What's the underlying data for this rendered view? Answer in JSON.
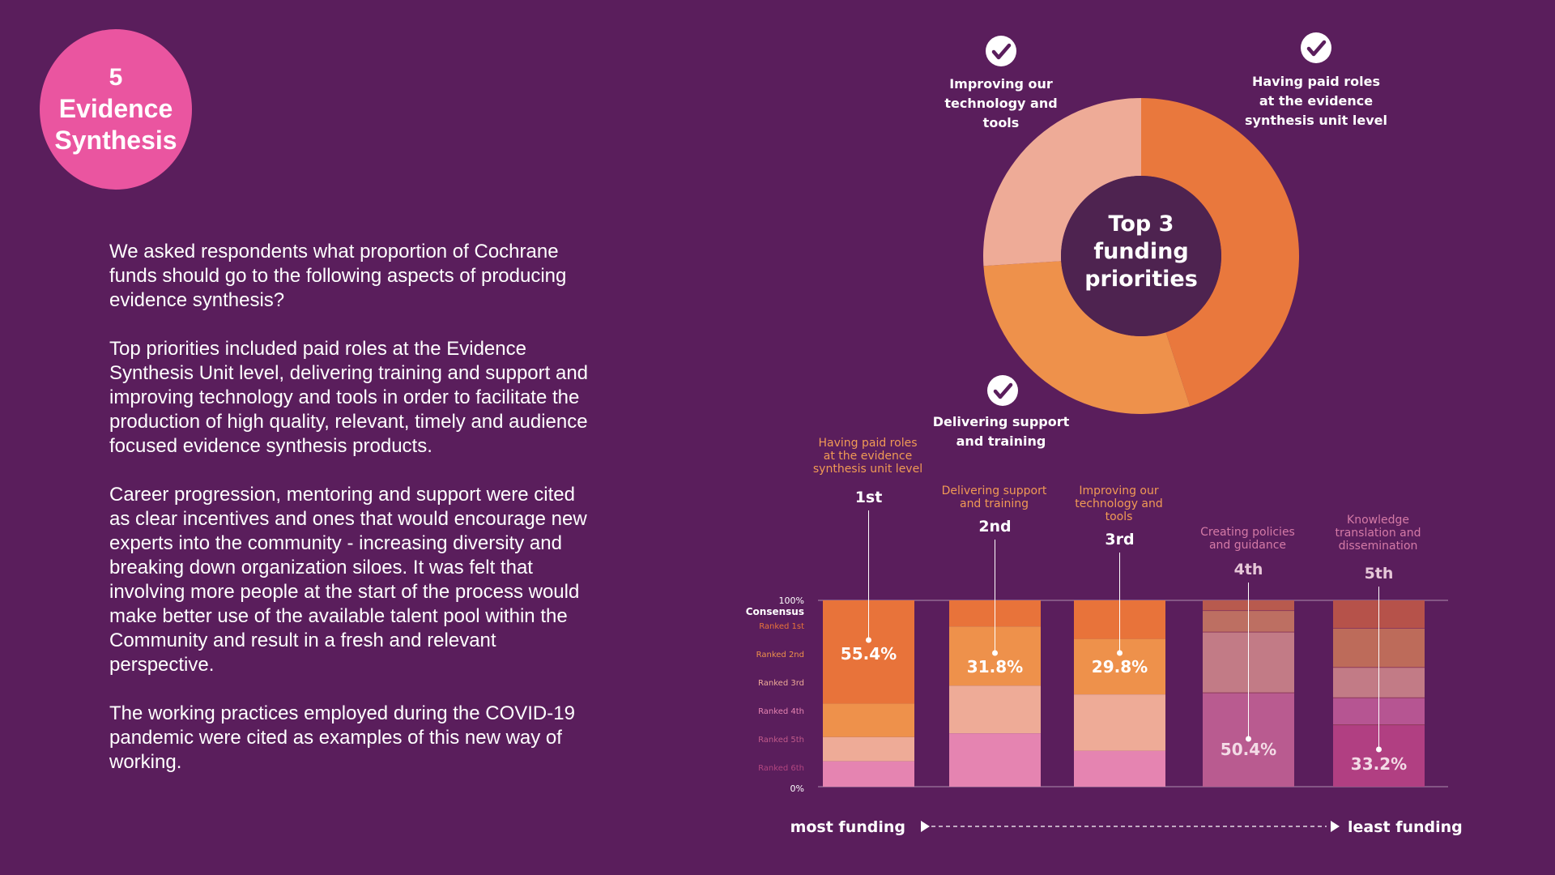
{
  "badge": {
    "number": "5",
    "line1": "Evidence",
    "line2": "Synthesis"
  },
  "paragraphs": [
    "We asked respondents what proportion of Cochrane funds should go to the following aspects of producing evidence synthesis?",
    "Top priorities included paid roles at the Evidence Synthesis Unit level, delivering training and support and improving technology and tools in order to facilitate the production of high quality, relevant, timely and audience focused evidence synthesis products.",
    "Career progression, mentoring and support were cited as clear incentives and ones that would encourage new experts into the community - increasing diversity and breaking down organization siloes. It was felt that involving more people at the start of the process would make better use of the available talent pool within the Community and result in a fresh and relevant perspective.",
    "The working practices employed during the COVID-19 pandemic were cited as examples of this new way of working."
  ],
  "colors": {
    "background": "#5a1e5c",
    "badge": "#ea55a0",
    "donut_center": "#4e2350",
    "rank1": "#e9783d",
    "rank2": "#ee914b",
    "rank3": "#eeab97",
    "rank4": "#e584b1",
    "muted": "#d47aa6"
  },
  "chart_data": [
    {
      "type": "pie",
      "title": "Top 3 funding priorities",
      "center_lines": [
        "Top 3",
        "funding",
        "priorities"
      ],
      "slices": [
        {
          "label": "Having paid roles at the evidence synthesis unit level",
          "lines": [
            "Having paid roles",
            "at the evidence",
            "synthesis unit level"
          ],
          "value": 0.45,
          "color": "#e9783d",
          "icon": "check-icon"
        },
        {
          "label": "Delivering support and training",
          "lines": [
            "Delivering support",
            "and training"
          ],
          "value": 0.29,
          "color": "#ee914b",
          "icon": "check-icon"
        },
        {
          "label": "Improving our technology and tools",
          "lines": [
            "Improving our",
            "technology and",
            "tools"
          ],
          "value": 0.26,
          "color": "#eeab97",
          "icon": "check-icon"
        }
      ]
    },
    {
      "type": "bar",
      "stacked": true,
      "ylabel": "Consensus",
      "y_ticks": [
        "100%",
        "0%"
      ],
      "ylim": [
        0,
        100
      ],
      "rank_labels": [
        "Ranked 1st",
        "Ranked 2nd",
        "Ranked 3rd",
        "Ranked 4th",
        "Ranked 5th",
        "Ranked 6th"
      ],
      "rank_colors": [
        "#e8733a",
        "#ee914b",
        "#eeab97",
        "#e584b1",
        "#c05a8a",
        "#b24680"
      ],
      "x_direction": {
        "start": "most funding",
        "end": "least funding"
      },
      "bars": [
        {
          "rank": "1st",
          "label_lines": [
            "Having paid roles",
            "at the evidence",
            "synthesis unit level"
          ],
          "value_label": "55.4%",
          "consensus": 55.4,
          "muted": false,
          "segments": [
            {
              "value": 55.4,
              "color": "#e8733a"
            },
            {
              "value": 18,
              "color": "#ee914b"
            },
            {
              "value": 13,
              "color": "#eeab97"
            },
            {
              "value": 13.6,
              "color": "#e584b1"
            }
          ]
        },
        {
          "rank": "2nd",
          "label_lines": [
            "Delivering support",
            "and training"
          ],
          "value_label": "31.8%",
          "consensus": 31.8,
          "muted": false,
          "segments": [
            {
              "value": 14,
              "color": "#e8733a"
            },
            {
              "value": 31.8,
              "color": "#ee914b"
            },
            {
              "value": 25.6,
              "color": "#eeab97"
            },
            {
              "value": 28.6,
              "color": "#e584b1"
            }
          ]
        },
        {
          "rank": "3rd",
          "label_lines": [
            "Improving our",
            "technology and",
            "tools"
          ],
          "value_label": "29.8%",
          "consensus": 29.8,
          "muted": false,
          "segments": [
            {
              "value": 20.7,
              "color": "#e8733a"
            },
            {
              "value": 29.8,
              "color": "#ee914b"
            },
            {
              "value": 30.3,
              "color": "#eeab97"
            },
            {
              "value": 19.2,
              "color": "#e584b1"
            }
          ]
        },
        {
          "rank": "4th",
          "label_lines": [
            "Creating policies",
            "and guidance"
          ],
          "value_label": "50.4%",
          "consensus": 50.4,
          "muted": true,
          "segments": [
            {
              "value": 5.5,
              "color": "#b85a4e"
            },
            {
              "value": 11.5,
              "color": "#bd6f62"
            },
            {
              "value": 32.6,
              "color": "#c27b86"
            },
            {
              "value": 50.4,
              "color": "#b95b90"
            }
          ]
        },
        {
          "rank": "5th",
          "label_lines": [
            "Knowledge",
            "translation and",
            "dissemination"
          ],
          "value_label": "33.2%",
          "consensus": 33.2,
          "muted": true,
          "segments": [
            {
              "value": 15,
              "color": "#b6524a"
            },
            {
              "value": 21,
              "color": "#bd6b5a"
            },
            {
              "value": 16.3,
              "color": "#c27b86"
            },
            {
              "value": 14.5,
              "color": "#b65592"
            },
            {
              "value": 33.2,
              "color": "#b13f82"
            }
          ]
        }
      ]
    }
  ]
}
